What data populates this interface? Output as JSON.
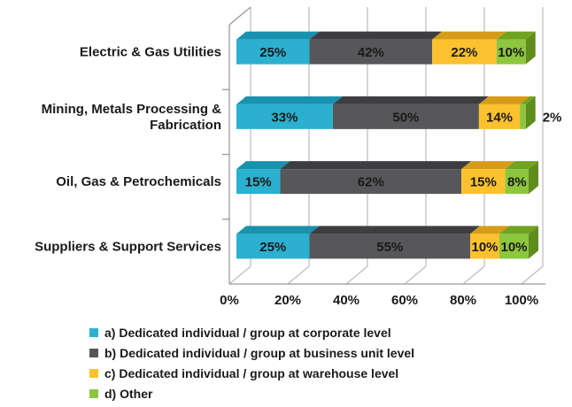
{
  "chart_data": {
    "type": "bar",
    "orientation": "horizontal",
    "stacked": true,
    "style": "3d",
    "title": "",
    "value_suffix": "%",
    "categories": [
      "Electric & Gas Utilities",
      "Mining, Metals Processing &\nFabrication",
      "Oil, Gas & Petrochemicals",
      "Suppliers & Support Services"
    ],
    "series": [
      {
        "name": "a) Dedicated individual / group at corporate level",
        "values": [
          25,
          33,
          15,
          25
        ],
        "color": "#2CB0CF",
        "color_top": "#1892AE",
        "color_side": "#14839C",
        "label_color": "#111111"
      },
      {
        "name": "b) Dedicated individual / group at business unit level",
        "values": [
          42,
          50,
          62,
          55
        ],
        "color": "#57575A",
        "color_top": "#3E3E41",
        "color_side": "#343437",
        "label_color": "#FFFFFF"
      },
      {
        "name": "c) Dedicated individual / group at warehouse level",
        "values": [
          22,
          14,
          15,
          10
        ],
        "color": "#FBC12E",
        "color_top": "#D69C17",
        "color_side": "#BD8A12",
        "label_color": "#111111"
      },
      {
        "name": "d) Other",
        "values": [
          10,
          2,
          8,
          10
        ],
        "color": "#8DC63F",
        "color_top": "#70A321",
        "color_side": "#5F8C1B",
        "label_color": "#111111"
      }
    ],
    "x_axis": {
      "min": 0,
      "max": 100,
      "ticks": [
        "0%",
        "20%",
        "40%",
        "60%",
        "80%",
        "100%"
      ]
    },
    "grid": true,
    "legend_position": "bottom-left"
  },
  "colors": {
    "background": "#FFFFFF",
    "grid": "#BFBFBF",
    "axis": "#9A9A9A",
    "text": "#1A1A1A"
  }
}
